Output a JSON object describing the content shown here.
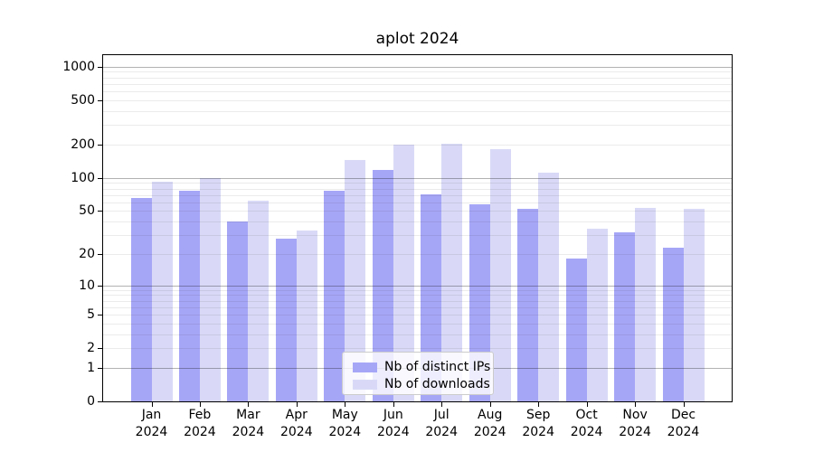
{
  "title": "aplot 2024",
  "chart_data": {
    "type": "bar",
    "title": "aplot 2024",
    "categories": [
      "Jan",
      "Feb",
      "Mar",
      "Apr",
      "May",
      "Jun",
      "Jul",
      "Aug",
      "Sep",
      "Oct",
      "Nov",
      "Dec"
    ],
    "category_year": "2024",
    "series": [
      {
        "name": "Nb of distinct IPs",
        "color": "#a6a6f7",
        "values": [
          66,
          76,
          40,
          28,
          77,
          117,
          71,
          57,
          52,
          18,
          32,
          23
        ]
      },
      {
        "name": "Nb of downloads",
        "color": "#d9d9f7",
        "values": [
          93,
          99,
          62,
          33,
          146,
          198,
          204,
          183,
          111,
          34,
          53,
          52
        ]
      }
    ],
    "xlabel": "",
    "ylabel": "",
    "yscale": "log1p",
    "yticks": [
      0,
      1,
      2,
      5,
      10,
      20,
      50,
      100,
      200,
      500,
      1000
    ],
    "ylim": [
      0,
      1300
    ],
    "grid": "horizontal; darker lines at 1, 10, 100, 1000; faint minor lines at 2-9 of each decade",
    "legend_position": "lower center"
  },
  "colors": {
    "bar_distinct_ips": "#a6a6f7",
    "bar_downloads": "#d9d9f7",
    "grid_major": "#b3b3b3",
    "grid_minor": "#ebebeb",
    "axis": "#000000",
    "legend_border": "#cccccc",
    "background": "#ffffff"
  }
}
